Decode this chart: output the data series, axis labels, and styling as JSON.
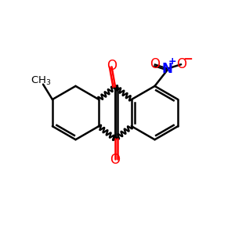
{
  "bg_color": "#ffffff",
  "bond_color": "#000000",
  "o_color": "#ff0000",
  "n_color": "#0000ff",
  "line_width": 1.8,
  "fig_size": [
    3.0,
    3.0
  ],
  "dpi": 100,
  "xlim": [
    0,
    10
  ],
  "ylim": [
    0,
    10
  ]
}
